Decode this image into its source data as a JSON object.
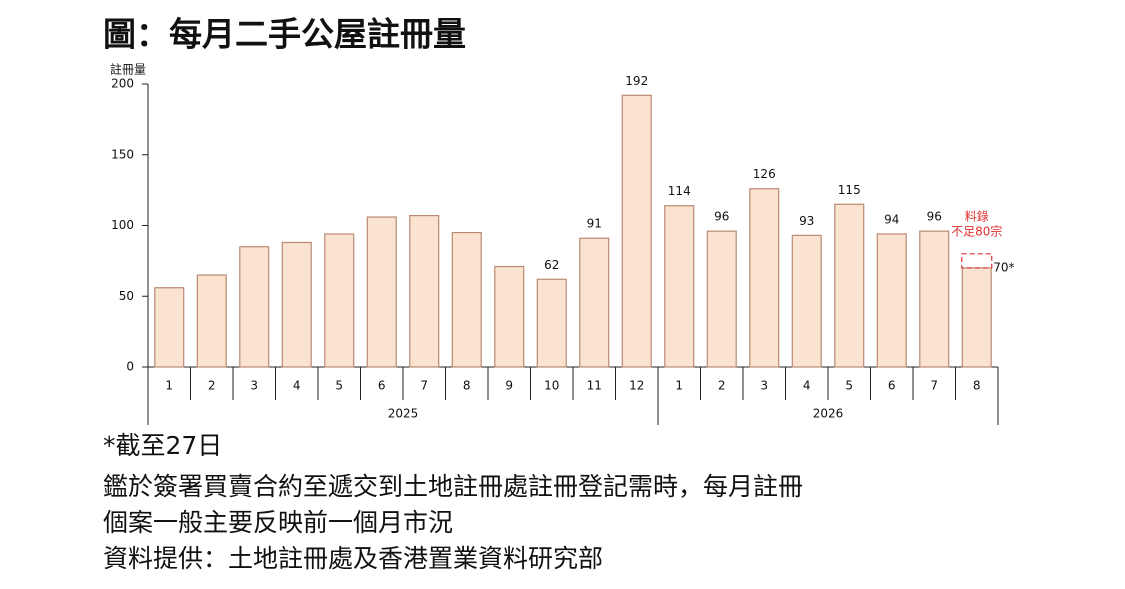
{
  "chart_data": {
    "type": "bar",
    "title": "圖：每月二手公屋註冊量",
    "ylabel": "註冊量",
    "groups": [
      {
        "name": "2025",
        "categories": [
          "1",
          "2",
          "3",
          "4",
          "5",
          "6",
          "7",
          "8",
          "9",
          "10",
          "11",
          "12"
        ]
      },
      {
        "name": "2026",
        "categories": [
          "1",
          "2",
          "3",
          "4",
          "5",
          "6",
          "7",
          "8"
        ]
      }
    ],
    "values": [
      56,
      65,
      85,
      88,
      94,
      106,
      107,
      95,
      71,
      62,
      91,
      192,
      114,
      96,
      126,
      93,
      115,
      94,
      96,
      70
    ],
    "value_labels": [
      null,
      null,
      null,
      null,
      null,
      null,
      null,
      null,
      null,
      "62",
      "91",
      "192",
      "114",
      "96",
      "126",
      "93",
      "115",
      "94",
      "96",
      "70*"
    ],
    "color": "#fbe3d2",
    "edge_color": "#b98a70",
    "ylim": [
      0,
      200
    ],
    "yticks": [
      0,
      50,
      100,
      150,
      200
    ],
    "annotation": {
      "lines": [
        "料錄",
        "不足80宗"
      ],
      "y": 80,
      "color": "#e03030"
    },
    "notes": [
      "*截至27日",
      "鑑於簽署買賣合約至遞交到土地註冊處註冊登記需時，每月註冊",
      "個案一般主要反映前一個月市況",
      "資料提供：土地註冊處及香港置業資料研究部"
    ]
  }
}
